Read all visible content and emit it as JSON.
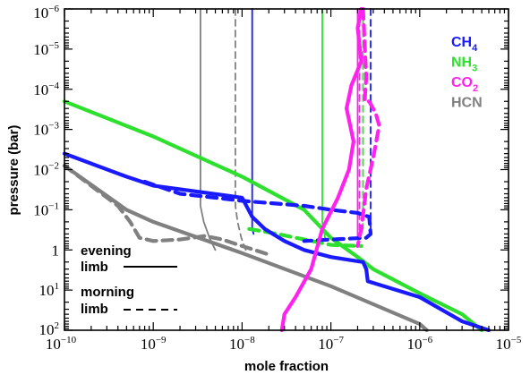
{
  "chart_data": {
    "type": "line",
    "xlabel": "mole fraction",
    "ylabel": "pressure (bar)",
    "xscale": "log",
    "yscale": "log",
    "yinverted": true,
    "xlim": [
      1e-10,
      1e-05
    ],
    "ylim": [
      100,
      1e-06
    ],
    "x_ticks": [
      {
        "value": 1e-10,
        "base": "10",
        "exp": "−10"
      },
      {
        "value": 1e-09,
        "base": "10",
        "exp": "−9"
      },
      {
        "value": 1e-08,
        "base": "10",
        "exp": "−8"
      },
      {
        "value": 1e-07,
        "base": "10",
        "exp": "−7"
      },
      {
        "value": 1e-06,
        "base": "10",
        "exp": "−6"
      },
      {
        "value": 1e-05,
        "base": "10",
        "exp": "−5"
      }
    ],
    "y_ticks": [
      {
        "value": 1e-06,
        "base": "10",
        "exp": "−6"
      },
      {
        "value": 1e-05,
        "base": "10",
        "exp": "−5"
      },
      {
        "value": 0.0001,
        "base": "10",
        "exp": "−4"
      },
      {
        "value": 0.001,
        "base": "10",
        "exp": "−3"
      },
      {
        "value": 0.01,
        "base": "10",
        "exp": "−2"
      },
      {
        "value": 0.1,
        "base": "10",
        "exp": "−1"
      },
      {
        "value": 1,
        "base": "1",
        "exp": ""
      },
      {
        "value": 10,
        "base": "10",
        "exp": "1"
      },
      {
        "value": 100,
        "base": "10",
        "exp": "2"
      }
    ],
    "legend": {
      "placement": "top-right",
      "entries": [
        {
          "species": "CH",
          "sub": "4",
          "color": "#1a1aff"
        },
        {
          "species": "NH",
          "sub": "3",
          "color": "#2de02d"
        },
        {
          "species": "CO",
          "sub": "2",
          "color": "#ff22ee"
        },
        {
          "species": "HCN",
          "sub": "",
          "color": "#808080"
        }
      ]
    },
    "limb_legend": [
      {
        "line1": "evening",
        "line2": "limb",
        "style": "solid"
      },
      {
        "line1": "morning",
        "line2": "limb",
        "style": "dashed"
      }
    ],
    "series": [
      {
        "species": "HCN",
        "limb": "evening",
        "width": "thin",
        "color": "#808080",
        "points": [
          [
            3.4e-09,
            1e-06
          ],
          [
            3.4e-09,
            0.08
          ],
          [
            3.7e-09,
            0.2
          ],
          [
            4.3e-09,
            0.5
          ],
          [
            5e-09,
            1
          ]
        ]
      },
      {
        "species": "HCN",
        "limb": "morning",
        "width": "thin",
        "color": "#808080",
        "points": [
          [
            8.4e-09,
            1e-06
          ],
          [
            8.4e-09,
            0.08
          ],
          [
            8.9e-09,
            0.2
          ],
          [
            9.8e-09,
            0.5
          ],
          [
            1.1e-08,
            1
          ]
        ]
      },
      {
        "species": "CH4",
        "limb": "evening",
        "width": "thin",
        "color": "#1a1aff",
        "points": [
          [
            1.3e-08,
            1e-06
          ],
          [
            1.3e-08,
            0.3
          ],
          [
            1.35e-08,
            0.4
          ]
        ]
      },
      {
        "species": "NH3",
        "limb": "evening",
        "width": "thin",
        "color": "#2de02d",
        "points": [
          [
            8e-08,
            1e-06
          ],
          [
            8e-08,
            0.2
          ],
          [
            8.6e-08,
            0.5
          ]
        ]
      },
      {
        "species": "NH3",
        "limb": "morning",
        "width": "thin",
        "color": "#2de02d",
        "points": [
          [
            2.3e-07,
            1e-06
          ],
          [
            2.3e-07,
            0.3
          ]
        ]
      },
      {
        "species": "CO2",
        "limb": "evening",
        "width": "thin",
        "color": "#ff22ee",
        "points": [
          [
            2e-07,
            1e-06
          ],
          [
            2e-07,
            0.5
          ]
        ]
      },
      {
        "species": "CO2",
        "limb": "morning",
        "width": "thin",
        "color": "#ff22ee",
        "points": [
          [
            2.1e-07,
            1e-06
          ],
          [
            2.1e-07,
            0.5
          ]
        ]
      },
      {
        "species": "CH4",
        "limb": "morning",
        "width": "thin",
        "color": "#1a1aff",
        "points": [
          [
            2.8e-07,
            1e-06
          ],
          [
            2.8e-07,
            0.4
          ]
        ]
      },
      {
        "species": "HCN",
        "limb": "evening",
        "width": "thick",
        "color": "#808080",
        "points": [
          [
            1e-10,
            0.008
          ],
          [
            5e-10,
            0.1
          ],
          [
            1e-09,
            0.2
          ],
          [
            1e-08,
            1.2
          ],
          [
            1e-07,
            8
          ],
          [
            1e-06,
            70
          ],
          [
            1.2e-06,
            100
          ]
        ]
      },
      {
        "species": "HCN",
        "limb": "morning",
        "width": "thick",
        "color": "#808080",
        "points": [
          [
            1e-10,
            0.008
          ],
          [
            4e-10,
            0.08
          ],
          [
            5.5e-10,
            0.2
          ],
          [
            7e-10,
            0.5
          ],
          [
            1e-09,
            0.6
          ],
          [
            2e-09,
            0.55
          ],
          [
            3.8e-09,
            0.45
          ],
          [
            6e-09,
            0.55
          ],
          [
            1e-08,
            0.8
          ],
          [
            2e-08,
            1.3
          ]
        ]
      },
      {
        "species": "NH3",
        "limb": "evening",
        "width": "thick",
        "color": "#2de02d",
        "points": [
          [
            1e-10,
            0.0002
          ],
          [
            1e-09,
            0.0015
          ],
          [
            1e-08,
            0.015
          ],
          [
            5e-08,
            0.1
          ],
          [
            1e-07,
            0.5
          ],
          [
            2e-07,
            1.5
          ],
          [
            3e-07,
            3
          ],
          [
            1e-06,
            12
          ],
          [
            3e-06,
            40
          ],
          [
            5e-06,
            100
          ]
        ]
      },
      {
        "species": "NH3",
        "limb": "morning",
        "width": "thick",
        "color": "#2de02d",
        "points": [
          [
            1.2e-08,
            0.3
          ],
          [
            2.5e-08,
            0.4
          ],
          [
            5e-08,
            0.55
          ],
          [
            1e-07,
            0.75
          ],
          [
            2.2e-07,
            0.8
          ]
        ]
      },
      {
        "species": "CH4",
        "limb": "evening",
        "width": "thick",
        "color": "#1a1aff",
        "points": [
          [
            1e-10,
            0.004
          ],
          [
            5e-10,
            0.015
          ],
          [
            1e-09,
            0.025
          ],
          [
            1e-08,
            0.05
          ],
          [
            1.3e-08,
            0.15
          ],
          [
            1.8e-08,
            0.3
          ],
          [
            3e-08,
            0.6
          ],
          [
            5e-08,
            1
          ],
          [
            1e-07,
            1.5
          ],
          [
            2.3e-07,
            2
          ],
          [
            2.5e-07,
            3
          ],
          [
            2.6e-07,
            6
          ],
          [
            1e-06,
            15
          ],
          [
            3e-06,
            60
          ],
          [
            6e-06,
            100
          ]
        ]
      },
      {
        "species": "CH4",
        "limb": "morning",
        "width": "thick",
        "color": "#1a1aff",
        "points": [
          [
            8e-10,
            0.02
          ],
          [
            2e-09,
            0.04
          ],
          [
            5e-09,
            0.05
          ],
          [
            1e-08,
            0.06
          ],
          [
            5e-08,
            0.08
          ],
          [
            1e-07,
            0.1
          ],
          [
            2e-07,
            0.12
          ],
          [
            2.7e-07,
            0.15
          ],
          [
            2.8e-07,
            0.4
          ],
          [
            2.5e-07,
            0.5
          ],
          [
            1e-07,
            0.55
          ],
          [
            5e-08,
            0.6
          ]
        ]
      },
      {
        "species": "CO2",
        "limb": "evening",
        "width": "thick",
        "color": "#ff22ee",
        "points": [
          [
            2.8e-08,
            100
          ],
          [
            3e-08,
            40
          ],
          [
            4e-08,
            15
          ],
          [
            6e-08,
            3
          ],
          [
            8e-08,
            0.3
          ],
          [
            1.2e-07,
            0.05
          ],
          [
            1.6e-07,
            0.01
          ],
          [
            1.8e-07,
            0.002
          ],
          [
            1.5e-07,
            0.0003
          ],
          [
            1.7e-07,
            8e-05
          ],
          [
            2.2e-07,
            2e-05
          ],
          [
            2e-07,
            3e-06
          ],
          [
            2.2e-07,
            1e-06
          ]
        ]
      },
      {
        "species": "CO2",
        "limb": "morning",
        "width": "thick",
        "color": "#ff22ee",
        "points": [
          [
            2.3e-07,
            1e-06
          ],
          [
            2.5e-07,
            5e-05
          ],
          [
            2.4e-07,
            0.0002
          ],
          [
            2.7e-07,
            0.0002
          ],
          [
            3.2e-07,
            0.0004
          ],
          [
            3.5e-07,
            0.0008
          ],
          [
            3e-07,
            0.005
          ],
          [
            2.5e-07,
            0.03
          ],
          [
            2.2e-07,
            0.3
          ],
          [
            2e-07,
            0.8
          ]
        ]
      }
    ]
  }
}
